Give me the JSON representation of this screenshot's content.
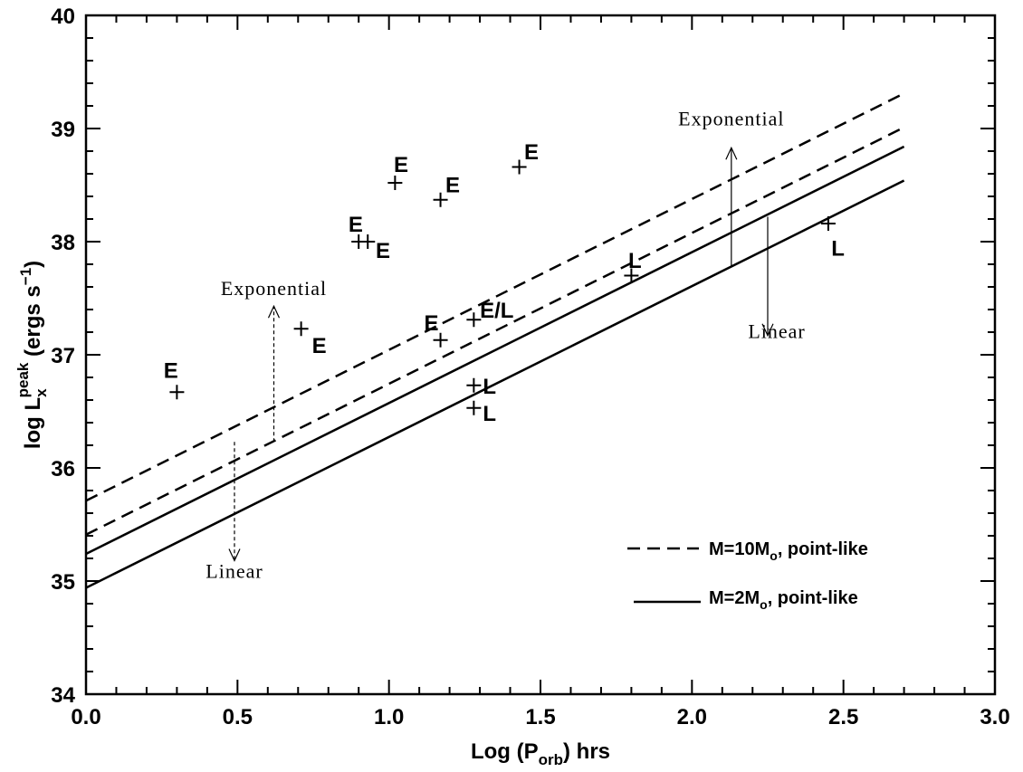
{
  "chart_data": {
    "type": "line",
    "title": "",
    "xlabel": "Log (P",
    "xlabel_sub": "orb",
    "xlabel_tail": ") hrs",
    "ylabel": "log L",
    "ylabel_sub": "x",
    "ylabel_sup": "peak",
    "ylabel_tail": " (ergs s",
    "ylabel_tail_sup": "−1",
    "ylabel_close": ")",
    "xlim": [
      0.0,
      3.0
    ],
    "ylim": [
      34,
      40
    ],
    "xticks": [
      0.0,
      0.5,
      1.0,
      1.5,
      2.0,
      2.5,
      3.0
    ],
    "xtick_labels": [
      "0.0",
      "0.5",
      "1.0",
      "1.5",
      "2.0",
      "2.5",
      "3.0"
    ],
    "yticks": [
      34,
      35,
      36,
      37,
      38,
      39,
      40
    ],
    "ytick_labels": [
      "34",
      "35",
      "36",
      "37",
      "38",
      "39",
      "40"
    ],
    "series": [
      {
        "style": "dashed",
        "x": [
          0.0,
          2.7
        ],
        "y": [
          35.71,
          39.31
        ]
      },
      {
        "style": "dashed",
        "x": [
          0.0,
          2.7
        ],
        "y": [
          35.41,
          39.01
        ]
      },
      {
        "style": "solid",
        "x": [
          0.0,
          2.7
        ],
        "y": [
          35.24,
          38.84
        ]
      },
      {
        "style": "solid",
        "x": [
          0.0,
          2.7
        ],
        "y": [
          34.94,
          38.54
        ]
      }
    ],
    "points": [
      {
        "x": 0.3,
        "y": 36.67,
        "label": "E",
        "lx": 0.28,
        "ly": 36.87,
        "anchor": "middle"
      },
      {
        "x": 0.71,
        "y": 37.23,
        "label": "E",
        "lx": 0.77,
        "ly": 37.09,
        "anchor": "middle"
      },
      {
        "x": 0.9,
        "y": 38.0,
        "label": "E",
        "lx": 0.89,
        "ly": 38.16,
        "anchor": "middle"
      },
      {
        "x": 0.93,
        "y": 38.0,
        "label": "E",
        "lx": 0.98,
        "ly": 37.93,
        "anchor": "middle"
      },
      {
        "x": 1.02,
        "y": 38.52,
        "label": "E",
        "lx": 1.04,
        "ly": 38.69,
        "anchor": "middle"
      },
      {
        "x": 1.17,
        "y": 37.13,
        "label": "E",
        "lx": 1.14,
        "ly": 37.29,
        "anchor": "middle"
      },
      {
        "x": 1.17,
        "y": 38.37,
        "label": "E",
        "lx": 1.21,
        "ly": 38.51,
        "anchor": "middle"
      },
      {
        "x": 1.28,
        "y": 37.31,
        "label": "E/L",
        "lx": 1.3,
        "ly": 37.4,
        "anchor": "start"
      },
      {
        "x": 1.28,
        "y": 36.73,
        "label": "L",
        "lx": 1.31,
        "ly": 36.73,
        "anchor": "start"
      },
      {
        "x": 1.28,
        "y": 36.53,
        "label": "L",
        "lx": 1.31,
        "ly": 36.49,
        "anchor": "start"
      },
      {
        "x": 1.43,
        "y": 38.66,
        "label": "E",
        "lx": 1.47,
        "ly": 38.8,
        "anchor": "middle"
      },
      {
        "x": 1.8,
        "y": 37.7,
        "label": "L",
        "lx": 1.79,
        "ly": 37.84,
        "anchor": "start"
      },
      {
        "x": 2.45,
        "y": 38.16,
        "label": "L",
        "lx": 2.46,
        "ly": 37.95,
        "anchor": "start"
      }
    ],
    "arrows": [
      {
        "style": "dashed",
        "x": 0.62,
        "y_from": 36.23,
        "y_to": 37.43
      },
      {
        "style": "dashed",
        "x": 0.49,
        "y_from": 36.23,
        "y_to": 35.18
      },
      {
        "style": "solid",
        "x": 2.13,
        "y_from": 37.78,
        "y_to": 38.83
      },
      {
        "style": "solid",
        "x": 2.25,
        "y_from": 38.22,
        "y_to": 37.17
      }
    ],
    "annotations": [
      {
        "text": "Exponential",
        "x": 0.62,
        "y": 37.53,
        "anchor": "middle"
      },
      {
        "text": "Linear",
        "x": 0.49,
        "y": 35.03,
        "anchor": "middle"
      },
      {
        "text": "Exponential",
        "x": 2.13,
        "y": 39.03,
        "anchor": "middle"
      },
      {
        "text": "Linear",
        "x": 2.28,
        "y": 37.15,
        "anchor": "middle"
      }
    ],
    "legend": {
      "placement": "bottom-right",
      "items": [
        {
          "style": "dashed",
          "text": "M=10M",
          "sub": "o",
          "tail": ", point-like"
        },
        {
          "style": "solid",
          "text": "M=2M",
          "sub": "o",
          "tail": ", point-like"
        }
      ]
    },
    "colors": {
      "ink": "#000000",
      "background": "#ffffff"
    }
  }
}
